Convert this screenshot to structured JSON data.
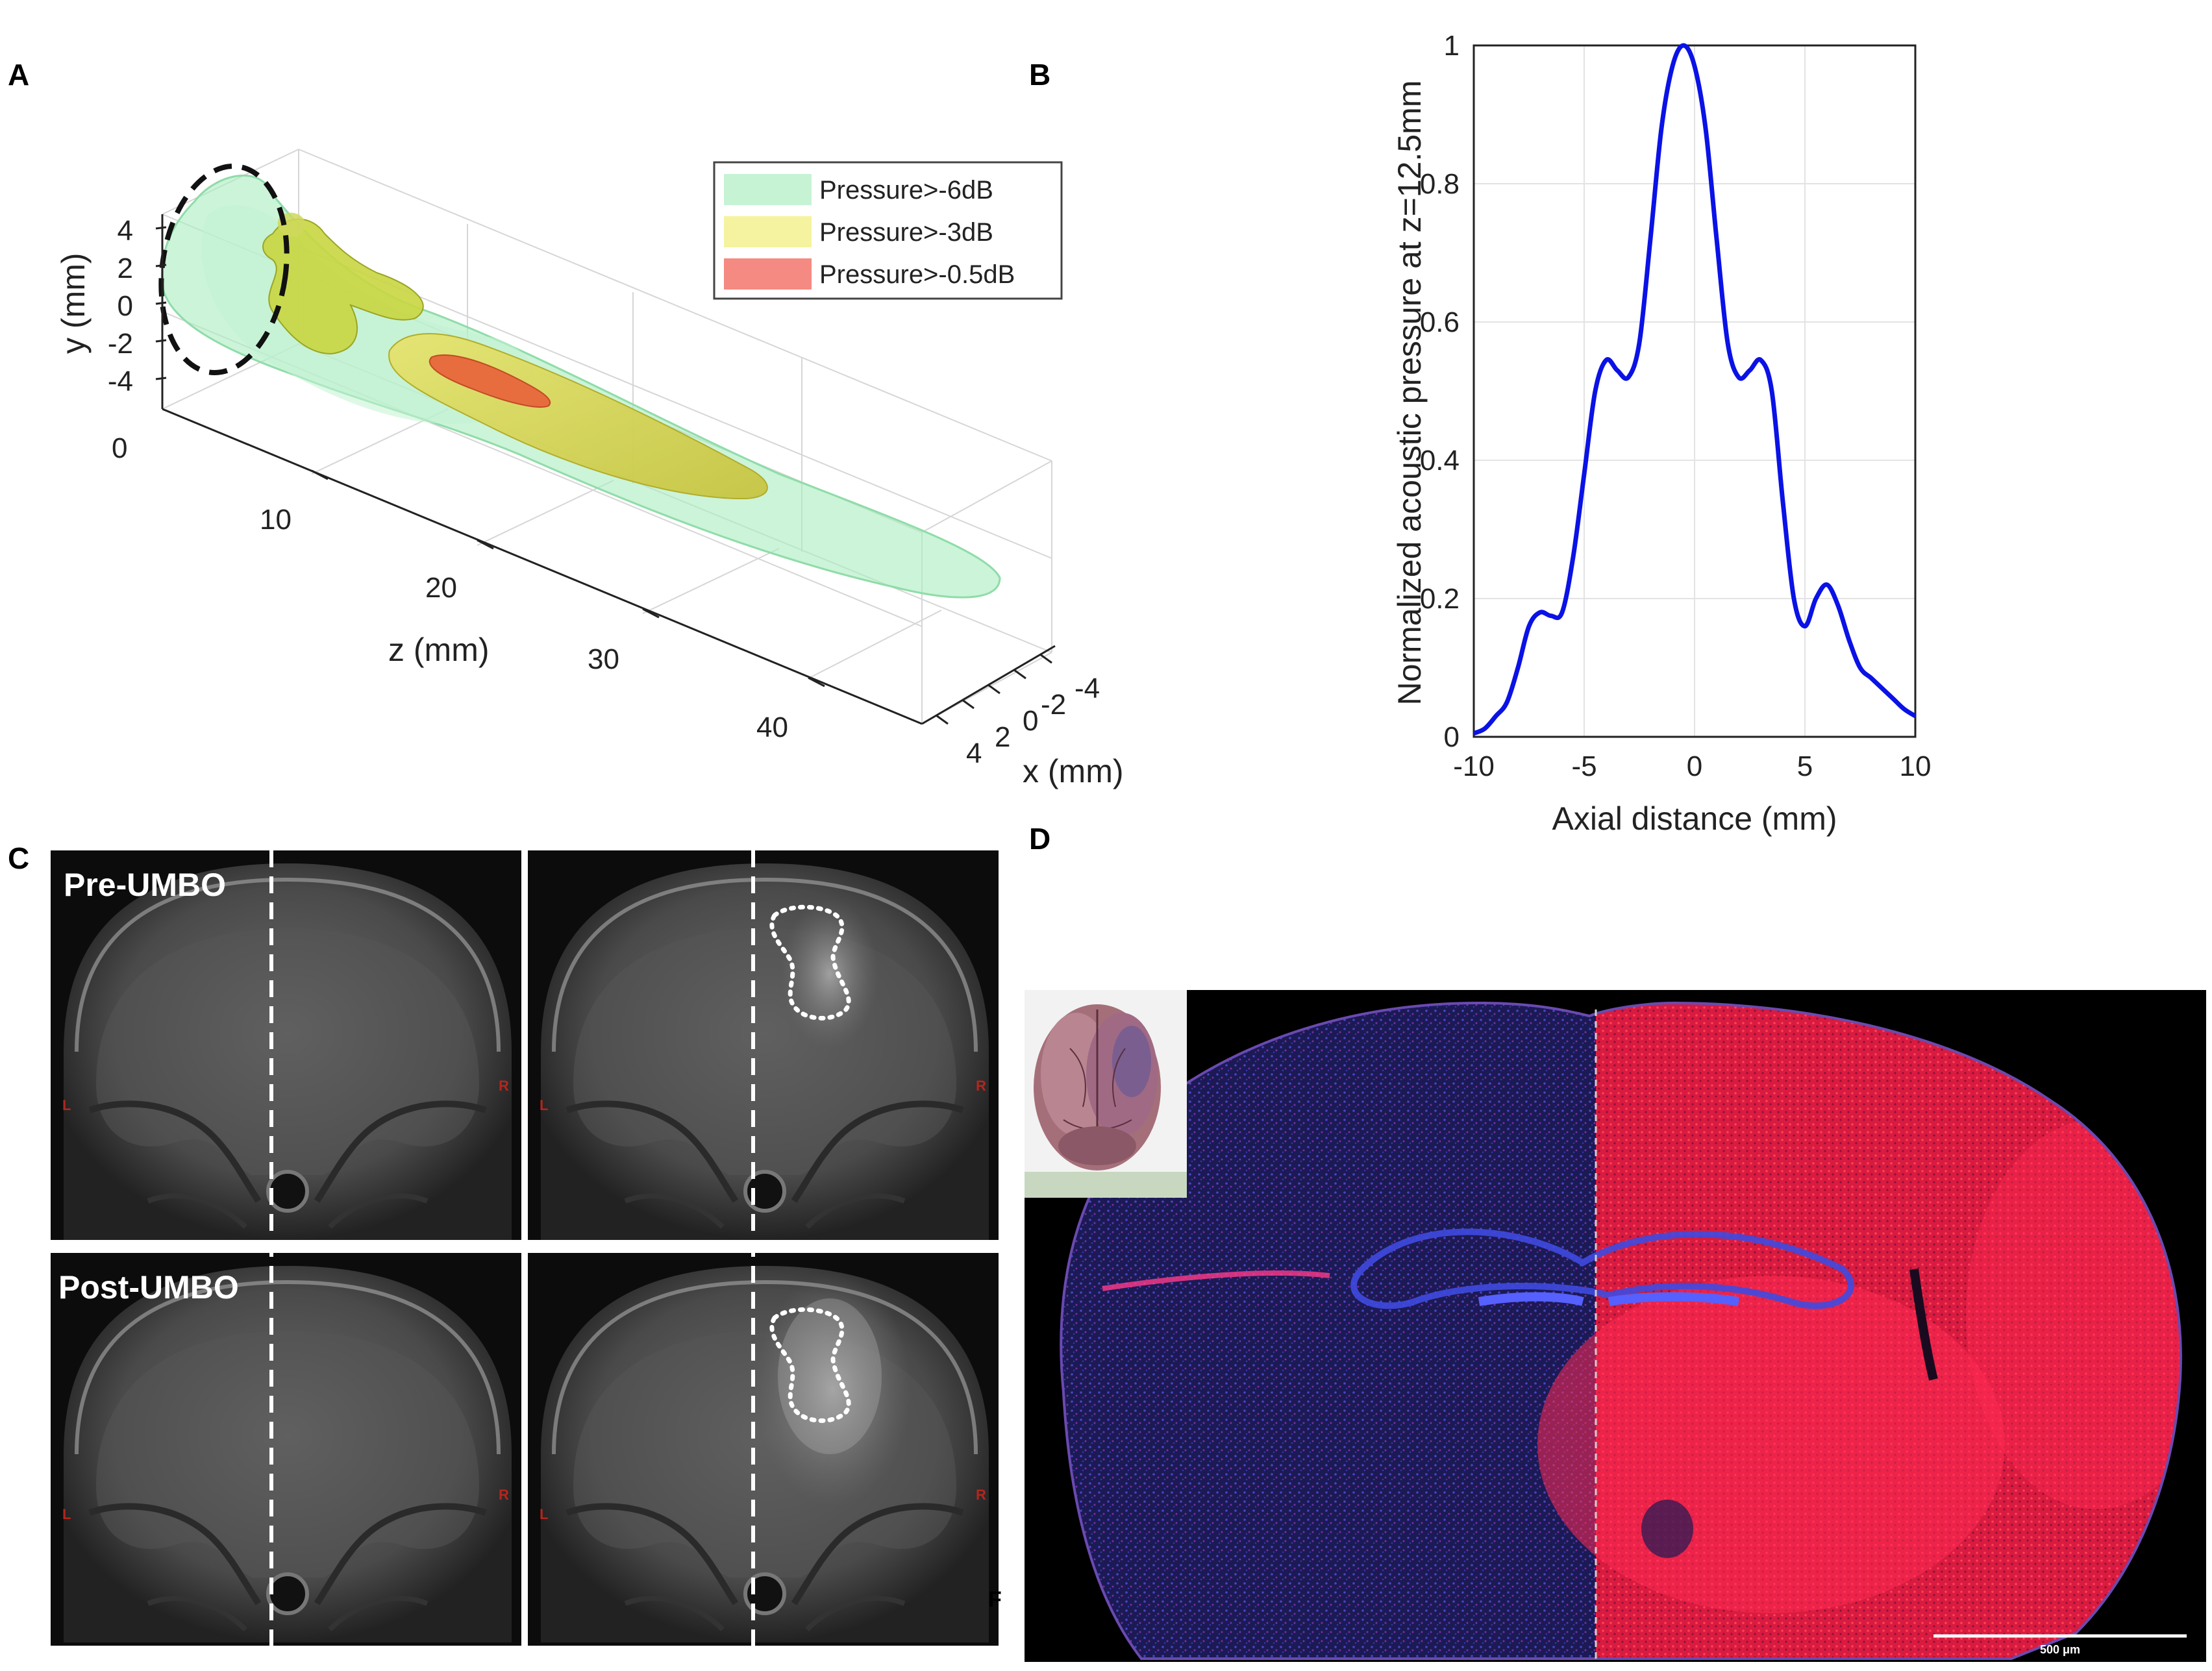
{
  "figure": {
    "panel_labels": {
      "a": "A",
      "b": "B",
      "c": "C",
      "d": "D"
    }
  },
  "panel_a": {
    "y_label": "y (mm)",
    "z_label": "z (mm)",
    "x_label": "x (mm)",
    "y_ticks": [
      "4",
      "2",
      "0",
      "-2",
      "-4"
    ],
    "z_ticks": [
      "0",
      "10",
      "20",
      "30",
      "40"
    ],
    "x_ticks": [
      "4",
      "2",
      "0",
      "-2",
      "-4"
    ],
    "legend": [
      {
        "label": "Pressure>-6dB",
        "color": "#9ee8b6"
      },
      {
        "label": "Pressure>-3dB",
        "color": "#f3f08a"
      },
      {
        "label": "Pressure>-0.5dB",
        "color": "#f07c74"
      }
    ]
  },
  "chart_data": {
    "type": "line",
    "title": "",
    "xlabel": "Axial distance (mm)",
    "ylabel": "Normalized acoustic pressure at z=12.5mm",
    "xlim": [
      -10,
      10
    ],
    "ylim": [
      0,
      1
    ],
    "x_ticks": [
      -10,
      -5,
      0,
      5,
      10
    ],
    "x_tick_labels": [
      "-10",
      "-5",
      "0",
      "5",
      "10"
    ],
    "y_ticks": [
      0,
      0.2,
      0.4,
      0.6,
      0.8,
      1
    ],
    "y_tick_labels": [
      "0",
      "0.2",
      "0.4",
      "0.6",
      "0.8",
      "1"
    ],
    "grid": true,
    "series": [
      {
        "name": "pressure",
        "color": "#0a12e6",
        "x": [
          -10,
          -9.5,
          -9,
          -8.5,
          -8,
          -7.5,
          -7,
          -6.5,
          -6,
          -5.5,
          -5,
          -4.5,
          -4,
          -3.5,
          -3,
          -2.5,
          -2,
          -1.5,
          -1,
          -0.5,
          0,
          0.5,
          1,
          1.5,
          2,
          2.5,
          3,
          3.5,
          4,
          4.5,
          5,
          5.5,
          6,
          6.5,
          7,
          7.5,
          8,
          8.5,
          9,
          9.5,
          10
        ],
        "y": [
          0.005,
          0.012,
          0.03,
          0.05,
          0.1,
          0.16,
          0.18,
          0.175,
          0.18,
          0.26,
          0.38,
          0.5,
          0.545,
          0.53,
          0.52,
          0.57,
          0.72,
          0.88,
          0.97,
          1.0,
          0.97,
          0.88,
          0.72,
          0.57,
          0.52,
          0.53,
          0.545,
          0.5,
          0.34,
          0.2,
          0.16,
          0.2,
          0.22,
          0.19,
          0.14,
          0.1,
          0.085,
          0.07,
          0.055,
          0.04,
          0.03
        ]
      }
    ]
  },
  "panel_c": {
    "rows": [
      {
        "label": "Pre-UMBO"
      },
      {
        "label": "Post-UMBO"
      }
    ],
    "left_marker": "L",
    "right_marker": "R",
    "stray_mark": "F"
  },
  "panel_d": {
    "scale_label": "500 μm"
  }
}
